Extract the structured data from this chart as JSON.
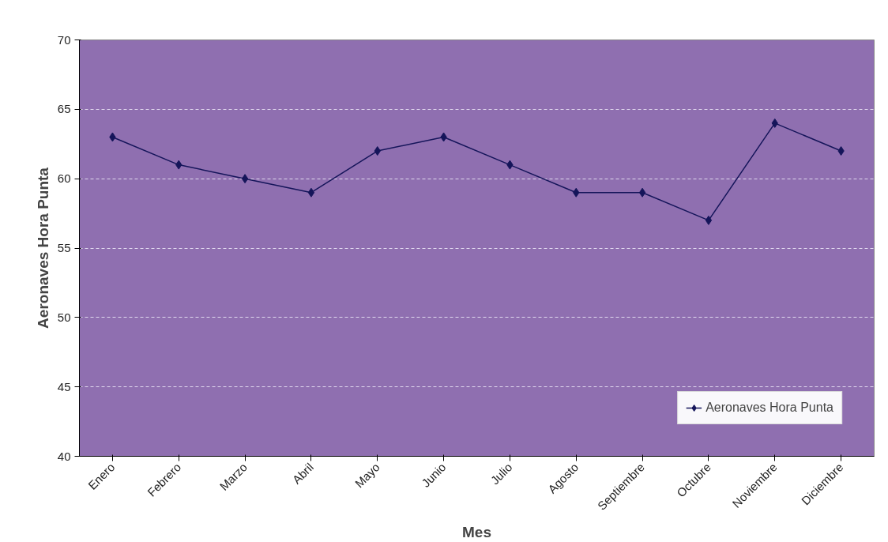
{
  "chart_data": {
    "type": "line",
    "xlabel": "Mes",
    "ylabel": "Aeronaves Hora Punta",
    "categories": [
      "Enero",
      "Febrero",
      "Marzo",
      "Abril",
      "Mayo",
      "Junio",
      "Julio",
      "Agosto",
      "Septiembre",
      "Octubre",
      "Noviembre",
      "Diciembre"
    ],
    "series": [
      {
        "name": "Aeronaves Hora Punta",
        "color": "#15155a",
        "values": [
          63,
          61,
          60,
          59,
          62,
          63,
          61,
          59,
          59,
          57,
          64,
          62
        ]
      }
    ],
    "ylim": [
      40,
      70
    ],
    "yticks": [
      40,
      45,
      50,
      55,
      60,
      65,
      70
    ],
    "grid": "y",
    "legend": "bottom right",
    "marker": "diamond",
    "line_style": "solid"
  }
}
